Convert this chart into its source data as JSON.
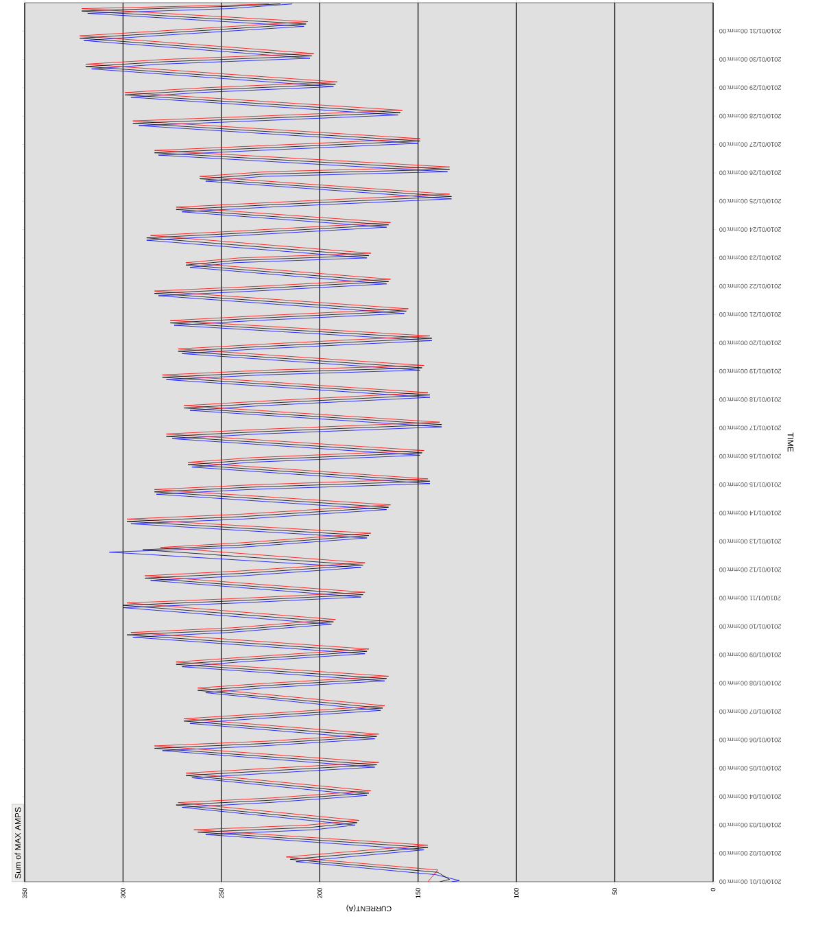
{
  "chart_data": {
    "type": "line",
    "orientation": "horizontal",
    "xlabel": "CURRENT(A)",
    "ylabel": "TIME",
    "annotations": [
      "Sum of MAX AMPS"
    ],
    "x": [
      "2010-01-01T00:00",
      "2010-01-01T02:00",
      "2010-01-01T08:00",
      "2010-01-01T19:00",
      "2010-01-02T05:00",
      "2010-01-02T18:00",
      "2010-01-02T22:00",
      "2010-01-03T02:00",
      "2010-01-03T17:00",
      "2010-01-03T21:00",
      "2010-01-04T03:00",
      "2010-01-04T18:00",
      "2010-01-04T22:00",
      "2010-01-05T03:00",
      "2010-01-05T17:00",
      "2010-01-05T21:00",
      "2010-01-06T03:00",
      "2010-01-06T16:00",
      "2010-01-06T20:00",
      "2010-01-07T03:00",
      "2010-01-07T18:00",
      "2010-01-07T22:00",
      "2010-01-08T04:00",
      "2010-01-08T16:00",
      "2010-01-08T20:00",
      "2010-01-09T03:00",
      "2010-01-09T17:00",
      "2010-01-09T21:00",
      "2010-01-10T04:00",
      "2010-01-10T18:00",
      "2010-01-10T22:00",
      "2010-01-11T03:00",
      "2010-01-11T17:00",
      "2010-01-11T21:00",
      "2010-01-12T04:00",
      "2010-01-12T17:00",
      "2010-01-12T21:00",
      "2010-01-13T05:00",
      "2010-01-13T17:00",
      "2010-01-13T21:00",
      "2010-01-14T05:00",
      "2010-01-14T18:00",
      "2010-01-14T22:00",
      "2010-01-15T03:00",
      "2010-01-15T17:00",
      "2010-01-15T21:00",
      "2010-01-16T03:00",
      "2010-01-16T17:00",
      "2010-01-16T21:00",
      "2010-01-17T03:00",
      "2010-01-17T17:00",
      "2010-01-17T21:00",
      "2010-01-18T04:00",
      "2010-01-18T19:00",
      "2010-01-18T23:00",
      "2010-01-19T03:00",
      "2010-01-19T17:00",
      "2010-01-19T21:00",
      "2010-01-20T04:00",
      "2010-01-20T17:00",
      "2010-01-20T21:00",
      "2010-01-21T03:00",
      "2010-01-21T18:00",
      "2010-01-21T22:00",
      "2010-01-22T04:00",
      "2010-01-22T18:00",
      "2010-01-22T22:00",
      "2010-01-23T02:00",
      "2010-01-23T17:00",
      "2010-01-23T21:00",
      "2010-01-24T04:00",
      "2010-01-24T17:00",
      "2010-01-24T21:00",
      "2010-01-25T04:00",
      "2010-01-25T19:00",
      "2010-01-25T23:00",
      "2010-01-26T03:00",
      "2010-01-26T17:00",
      "2010-01-26T21:00",
      "2010-01-27T03:00",
      "2010-01-27T18:00",
      "2010-01-27T22:00",
      "2010-01-28T03:00",
      "2010-01-28T18:00",
      "2010-01-28T22:00",
      "2010-01-29T03:00",
      "2010-01-29T18:00",
      "2010-01-29T22:00",
      "2010-01-30T03:00",
      "2010-01-30T18:00",
      "2010-01-30T22:00",
      "2010-01-31T06:00",
      "2010-01-31T17:00",
      "2010-01-31T21:00",
      "2010-01-31T23:00"
    ],
    "series": [
      {
        "color": "#0000ff",
        "x": [
          "2010-01-01T00:00",
          "2010-01-01T01:00",
          "2010-01-01T06:00",
          "2010-01-01T17:00",
          "2010-01-02T03:00",
          "2010-01-02T16:00",
          "2010-01-02T20:00",
          "2010-01-03T00:00",
          "2010-01-03T15:00",
          "2010-01-03T19:00",
          "2010-01-04T01:00",
          "2010-01-04T16:00",
          "2010-01-04T20:00",
          "2010-01-05T01:00",
          "2010-01-05T15:00",
          "2010-01-05T19:00",
          "2010-01-06T01:00",
          "2010-01-06T14:00",
          "2010-01-06T18:00",
          "2010-01-07T01:00",
          "2010-01-07T16:00",
          "2010-01-07T20:00",
          "2010-01-08T02:00",
          "2010-01-08T14:00",
          "2010-01-08T18:00",
          "2010-01-09T01:00",
          "2010-01-09T15:00",
          "2010-01-09T19:00",
          "2010-01-10T02:00",
          "2010-01-10T16:00",
          "2010-01-10T20:00",
          "2010-01-11T01:00",
          "2010-01-11T15:00",
          "2010-01-11T19:00",
          "2010-01-12T02:00",
          "2010-01-12T15:00",
          "2010-01-12T19:00",
          "2010-01-13T03:00",
          "2010-01-13T15:00",
          "2010-01-13T19:00",
          "2010-01-14T03:00",
          "2010-01-14T16:00",
          "2010-01-14T20:00",
          "2010-01-15T01:00",
          "2010-01-15T15:00",
          "2010-01-15T19:00",
          "2010-01-16T01:00",
          "2010-01-16T15:00",
          "2010-01-16T19:00",
          "2010-01-17T01:00",
          "2010-01-17T15:00",
          "2010-01-17T19:00",
          "2010-01-18T02:00",
          "2010-01-18T17:00",
          "2010-01-18T21:00",
          "2010-01-19T01:00",
          "2010-01-19T15:00",
          "2010-01-19T19:00",
          "2010-01-20T02:00",
          "2010-01-20T15:00",
          "2010-01-20T19:00",
          "2010-01-21T01:00",
          "2010-01-21T16:00",
          "2010-01-21T20:00",
          "2010-01-22T02:00",
          "2010-01-22T16:00",
          "2010-01-22T20:00",
          "2010-01-23T00:00",
          "2010-01-23T15:00",
          "2010-01-23T19:00",
          "2010-01-24T02:00",
          "2010-01-24T15:00",
          "2010-01-24T19:00",
          "2010-01-25T02:00",
          "2010-01-25T17:00",
          "2010-01-25T21:00",
          "2010-01-26T01:00",
          "2010-01-26T15:00",
          "2010-01-26T19:00",
          "2010-01-27T01:00",
          "2010-01-27T16:00",
          "2010-01-27T20:00",
          "2010-01-28T01:00",
          "2010-01-28T16:00",
          "2010-01-28T20:00",
          "2010-01-29T01:00",
          "2010-01-29T16:00",
          "2010-01-29T20:00",
          "2010-01-30T01:00",
          "2010-01-30T16:00",
          "2010-01-30T20:00",
          "2010-01-31T04:00",
          "2010-01-31T15:00",
          "2010-01-31T19:00",
          "2010-01-31T23:00"
        ],
        "values": [
          133,
          129,
          141,
          212,
          147,
          258,
          203,
          182,
          270,
          226,
          176,
          265,
          224,
          172,
          280,
          229,
          172,
          266,
          233,
          169,
          258,
          229,
          167,
          270,
          241,
          177,
          295,
          246,
          194,
          300,
          241,
          179,
          286,
          239,
          179,
          307,
          241,
          176,
          296,
          239,
          166,
          283,
          236,
          144,
          265,
          236,
          149,
          275,
          231,
          138,
          266,
          229,
          144,
          278,
          229,
          149,
          270,
          231,
          143,
          274,
          233,
          157,
          282,
          233,
          166,
          266,
          243,
          176,
          288,
          241,
          166,
          270,
          226,
          133,
          258,
          229,
          135,
          282,
          231,
          150,
          292,
          233,
          160,
          296,
          261,
          193,
          316,
          281,
          205,
          320,
          284,
          208,
          318,
          246,
          214
        ]
      },
      {
        "color": "#ff0000",
        "x": [
          "2010-01-01T00:00",
          "2010-01-01T04:00",
          "2010-01-01T10:00",
          "2010-01-01T21:00",
          "2010-01-02T07:00",
          "2010-01-02T20:00",
          "2010-01-03T00:00",
          "2010-01-03T04:00",
          "2010-01-03T19:00",
          "2010-01-03T23:00",
          "2010-01-04T05:00",
          "2010-01-04T20:00",
          "2010-01-05T00:00",
          "2010-01-05T05:00",
          "2010-01-05T19:00",
          "2010-01-05T23:00",
          "2010-01-06T05:00",
          "2010-01-06T18:00",
          "2010-01-06T22:00",
          "2010-01-07T05:00",
          "2010-01-07T20:00",
          "2010-01-08T00:00",
          "2010-01-08T06:00",
          "2010-01-08T18:00",
          "2010-01-08T22:00",
          "2010-01-09T05:00",
          "2010-01-09T19:00",
          "2010-01-09T23:00",
          "2010-01-10T06:00",
          "2010-01-10T20:00",
          "2010-01-11T00:00",
          "2010-01-11T05:00",
          "2010-01-11T19:00",
          "2010-01-11T23:00",
          "2010-01-12T06:00",
          "2010-01-12T19:00",
          "2010-01-12T23:00",
          "2010-01-13T07:00",
          "2010-01-13T19:00",
          "2010-01-13T23:00",
          "2010-01-14T07:00",
          "2010-01-14T20:00",
          "2010-01-15T00:00",
          "2010-01-15T05:00",
          "2010-01-15T19:00",
          "2010-01-15T23:00",
          "2010-01-16T05:00",
          "2010-01-16T19:00",
          "2010-01-16T23:00",
          "2010-01-17T05:00",
          "2010-01-17T19:00",
          "2010-01-17T23:00",
          "2010-01-18T06:00",
          "2010-01-18T21:00",
          "2010-01-19T01:00",
          "2010-01-19T05:00",
          "2010-01-19T19:00",
          "2010-01-19T23:00",
          "2010-01-20T06:00",
          "2010-01-20T19:00",
          "2010-01-20T23:00",
          "2010-01-21T05:00",
          "2010-01-21T20:00",
          "2010-01-22T00:00",
          "2010-01-22T06:00",
          "2010-01-22T20:00",
          "2010-01-23T00:00",
          "2010-01-23T04:00",
          "2010-01-23T19:00",
          "2010-01-23T23:00",
          "2010-01-24T06:00",
          "2010-01-24T19:00",
          "2010-01-24T23:00",
          "2010-01-25T06:00",
          "2010-01-25T21:00",
          "2010-01-26T01:00",
          "2010-01-26T05:00",
          "2010-01-26T19:00",
          "2010-01-26T23:00",
          "2010-01-27T05:00",
          "2010-01-27T20:00",
          "2010-01-28T00:00",
          "2010-01-28T05:00",
          "2010-01-28T20:00",
          "2010-01-29T00:00",
          "2010-01-29T05:00",
          "2010-01-29T20:00",
          "2010-01-30T00:00",
          "2010-01-30T05:00",
          "2010-01-30T20:00",
          "2010-01-31T00:00",
          "2010-01-31T08:00",
          "2010-01-31T19:00",
          "2010-01-31T22:00",
          "2010-01-31T23:00"
        ],
        "values": [
          145,
          143,
          140,
          217,
          145,
          264,
          206,
          180,
          272,
          224,
          174,
          268,
          226,
          170,
          284,
          227,
          170,
          269,
          231,
          167,
          262,
          227,
          165,
          273,
          239,
          175,
          296,
          244,
          192,
          298,
          239,
          177,
          289,
          241,
          177,
          281,
          239,
          174,
          298,
          241,
          164,
          284,
          234,
          145,
          267,
          234,
          147,
          278,
          229,
          139,
          269,
          227,
          145,
          280,
          227,
          147,
          272,
          229,
          144,
          276,
          231,
          155,
          284,
          231,
          164,
          268,
          241,
          174,
          286,
          239,
          164,
          273,
          224,
          134,
          261,
          227,
          134,
          284,
          229,
          149,
          295,
          231,
          158,
          299,
          259,
          191,
          319,
          279,
          203,
          322,
          282,
          206,
          321,
          244,
          226
        ]
      },
      {
        "color": "#000000",
        "values": [
          139,
          134,
          140,
          215,
          145,
          262,
          205,
          181,
          273,
          225,
          175,
          268,
          225,
          171,
          284,
          228,
          171,
          269,
          232,
          168,
          262,
          228,
          166,
          273,
          240,
          176,
          298,
          245,
          193,
          300,
          240,
          178,
          289,
          240,
          178,
          290,
          240,
          175,
          298,
          240,
          165,
          284,
          235,
          144,
          267,
          235,
          148,
          278,
          230,
          138,
          269,
          228,
          144,
          280,
          228,
          148,
          272,
          230,
          143,
          276,
          232,
          156,
          284,
          232,
          165,
          268,
          242,
          175,
          288,
          240,
          165,
          273,
          225,
          133,
          261,
          228,
          134,
          284,
          230,
          149,
          295,
          232,
          159,
          299,
          260,
          192,
          319,
          280,
          204,
          322,
          283,
          207,
          321,
          245,
          220
        ]
      }
    ],
    "xlim": [
      350,
      0
    ],
    "ylim": [
      "2010-01-01",
      "2010-02-01"
    ],
    "yticks": [
      {
        "value": "2010-01-01",
        "label": "2010/01/01 00:mm:00"
      },
      {
        "value": "2010-01-02",
        "label": "2010/01/02 00:mm:00"
      },
      {
        "value": "2010-01-03",
        "label": "2010/01/03 00:mm:00"
      },
      {
        "value": "2010-01-04",
        "label": "2010/01/04 00:mm:00"
      },
      {
        "value": "2010-01-05",
        "label": "2010/01/05 00:mm:00"
      },
      {
        "value": "2010-01-06",
        "label": "2010/01/06 00:mm:00"
      },
      {
        "value": "2010-01-07",
        "label": "2010/01/07 00:mm:00"
      },
      {
        "value": "2010-01-08",
        "label": "2010/01/08 00:mm:00"
      },
      {
        "value": "2010-01-09",
        "label": "2010/01/09 00:mm:00"
      },
      {
        "value": "2010-01-10",
        "label": "2010/01/10 00:mm:00"
      },
      {
        "value": "2010-01-11",
        "label": "2010/01/11 00:mm:00"
      },
      {
        "value": "2010-01-12",
        "label": "2010/01/12 00:mm:00"
      },
      {
        "value": "2010-01-13",
        "label": "2010/01/13 00:mm:00"
      },
      {
        "value": "2010-01-14",
        "label": "2010/01/14 00:mm:00"
      },
      {
        "value": "2010-01-15",
        "label": "2010/01/15 00:mm:00"
      },
      {
        "value": "2010-01-16",
        "label": "2010/01/16 00:mm:00"
      },
      {
        "value": "2010-01-17",
        "label": "2010/01/17 00:mm:00"
      },
      {
        "value": "2010-01-18",
        "label": "2010/01/18 00:mm:00"
      },
      {
        "value": "2010-01-19",
        "label": "2010/01/19 00:mm:00"
      },
      {
        "value": "2010-01-20",
        "label": "2010/01/20 00:mm:00"
      },
      {
        "value": "2010-01-21",
        "label": "2010/01/21 00:mm:00"
      },
      {
        "value": "2010-01-22",
        "label": "2010/01/22 00:mm:00"
      },
      {
        "value": "2010-01-23",
        "label": "2010/01/23 00:mm:00"
      },
      {
        "value": "2010-01-24",
        "label": "2010/01/24 00:mm:00"
      },
      {
        "value": "2010-01-25",
        "label": "2010/01/25 00:mm:00"
      },
      {
        "value": "2010-01-26",
        "label": "2010/01/26 00:mm:00"
      },
      {
        "value": "2010-01-27",
        "label": "2010/01/27 00:mm:00"
      },
      {
        "value": "2010-01-28",
        "label": "2010/01/28 00:mm:00"
      },
      {
        "value": "2010-01-29",
        "label": "2010/01/29 00:mm:00"
      },
      {
        "value": "2010-01-30",
        "label": "2010/01/30 00:mm:00"
      },
      {
        "value": "2010-01-31",
        "label": "2010/01/31 00:mm:00"
      }
    ],
    "xticks": [
      0,
      50,
      100,
      150,
      200,
      250,
      300,
      350
    ],
    "grid": "x",
    "marker": "none",
    "line_style": "solid"
  }
}
